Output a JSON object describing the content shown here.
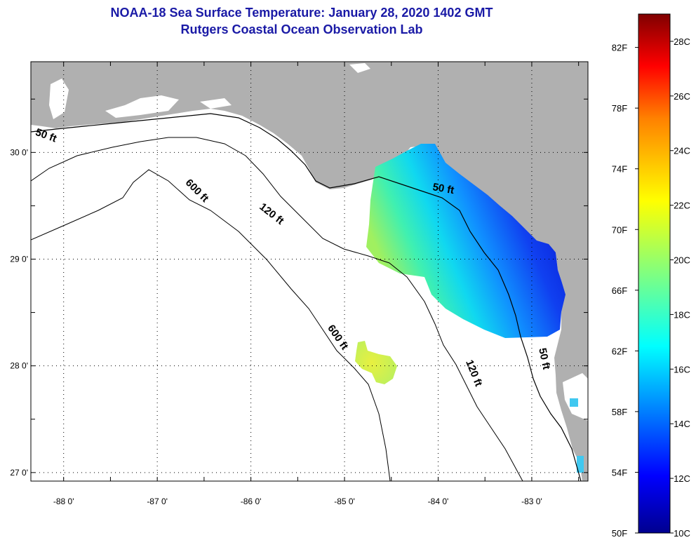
{
  "title": {
    "line1": "NOAA-18 Sea Surface Temperature:  January 28, 2020 1402 GMT",
    "line2": "Rutgers Coastal Ocean Observation Lab"
  },
  "map": {
    "lon_labels": [
      "-88 0'",
      "-87 0'",
      "-86 0'",
      "-85 0'",
      "-84 0'",
      "-83 0'"
    ],
    "lat_labels": [
      "30 0'",
      "29 0'",
      "28 0'",
      "27 0'"
    ],
    "lon_range": [
      -88.35,
      -82.4
    ],
    "lat_range": [
      26.92,
      30.85
    ],
    "land_color": "#b0b0b0",
    "ocean_color": "#ffffff"
  },
  "contours": [
    {
      "depth": "50 ft",
      "label": "50 ft"
    },
    {
      "depth": "120 ft",
      "label": "120 ft"
    },
    {
      "depth": "600 ft",
      "label": "600 ft"
    }
  ],
  "contour_labels": [
    {
      "text": "50 ft",
      "lon": -88.2,
      "lat": 30.13,
      "rot": 20
    },
    {
      "text": "50 ft",
      "lon": -83.95,
      "lat": 29.63,
      "rot": 10
    },
    {
      "text": "50 ft",
      "lon": -82.9,
      "lat": 28.06,
      "rot": 78
    },
    {
      "text": "120 ft",
      "lon": -85.8,
      "lat": 29.4,
      "rot": 38
    },
    {
      "text": "120 ft",
      "lon": -83.65,
      "lat": 27.92,
      "rot": 68
    },
    {
      "text": "600 ft",
      "lon": -86.6,
      "lat": 29.62,
      "rot": 45
    },
    {
      "text": "600 ft",
      "lon": -85.1,
      "lat": 28.25,
      "rot": 55
    }
  ],
  "colorbar": {
    "fahrenheit": [
      "82F",
      "78F",
      "74F",
      "70F",
      "66F",
      "62F",
      "58F",
      "54F",
      "50F"
    ],
    "celsius": [
      "28C",
      "26C",
      "24C",
      "22C",
      "20C",
      "18C",
      "16C",
      "14C",
      "12C",
      "10C"
    ],
    "min_c": 10,
    "max_c": 29,
    "colors": [
      "#00008f",
      "#0000ff",
      "#0080ff",
      "#00ffff",
      "#80ff80",
      "#ffff00",
      "#ff8000",
      "#ff0000",
      "#800000"
    ]
  }
}
